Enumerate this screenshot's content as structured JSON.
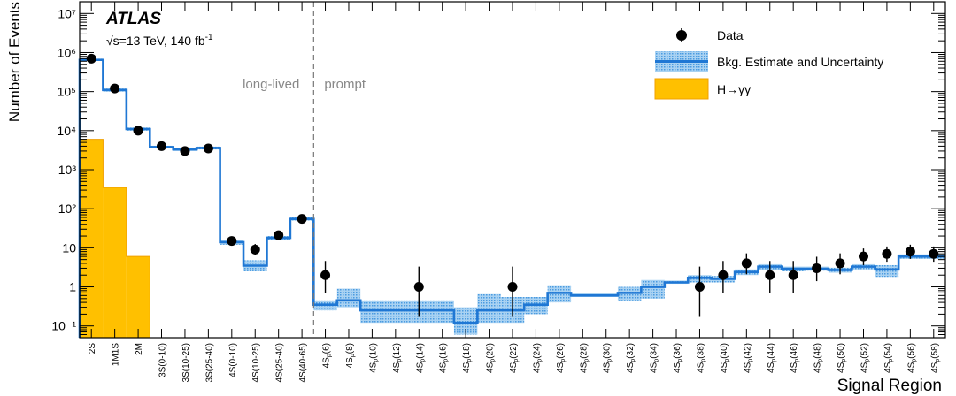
{
  "chart_data": {
    "type": "bar",
    "title": "",
    "experiment_label": "ATLAS",
    "energy_label": "√s=13 TeV, 140 fb",
    "energy_superscript": "-1",
    "xlabel": "Signal Region",
    "ylabel": "Number of Events",
    "yscale": "log",
    "ylim": [
      0.05,
      20000000
    ],
    "y_tick_labels": [
      "10⁻¹",
      "1",
      "10",
      "10²",
      "10³",
      "10⁴",
      "10⁵",
      "10⁶",
      "10⁷"
    ],
    "y_tick_values": [
      0.1,
      1,
      10,
      100,
      1000,
      10000,
      100000,
      1000000,
      10000000
    ],
    "region_divider": {
      "after_category": "4S(40-65)",
      "left_label": "long-lived",
      "right_label": "prompt"
    },
    "legend": {
      "placement": "top-right",
      "entries": [
        "Data",
        "Bkg. Estimate and Uncertainty",
        "H→γγ"
      ]
    },
    "colors": {
      "data": "#000000",
      "background": "#1f77d4",
      "background_band": "#7fb8e6",
      "signal": "#ffc000",
      "signal_edge": "#f0a000"
    },
    "categories": [
      "2S",
      "1M1S",
      "2M",
      "3S(0-10)",
      "3S(10-25)",
      "3S(25-40)",
      "4S(0-10)",
      "4S(10-25)",
      "4S(25-40)",
      "4S(40-65)",
      "4S_p(6)",
      "4S_p(8)",
      "4S_p(10)",
      "4S_p(12)",
      "4S_p(14)",
      "4S_p(16)",
      "4S_p(18)",
      "4S_p(20)",
      "4S_p(22)",
      "4S_p(24)",
      "4S_p(26)",
      "4S_p(28)",
      "4S_p(30)",
      "4S_p(32)",
      "4S_p(34)",
      "4S_p(36)",
      "4S_p(38)",
      "4S_p(40)",
      "4S_p(42)",
      "4S_p(44)",
      "4S_p(46)",
      "4S_p(48)",
      "4S_p(50)",
      "4S_p(52)",
      "4S_p(54)",
      "4S_p(56)",
      "4S_p(58)"
    ],
    "series": [
      {
        "name": "Data",
        "values": [
          700000,
          120000,
          10000,
          4000,
          3000,
          3500,
          15,
          9,
          21,
          55,
          2,
          0,
          0,
          0,
          1,
          0,
          0,
          0,
          1,
          0,
          0,
          0,
          0,
          0,
          0,
          0,
          1,
          2,
          4,
          2,
          2,
          3,
          4,
          6,
          7,
          8,
          7
        ]
      },
      {
        "name": "Bkg. Estimate and Uncertainty",
        "values": [
          650000,
          110000,
          11000,
          3800,
          3300,
          3600,
          14,
          3.5,
          18,
          55,
          0.35,
          0.45,
          0.25,
          0.25,
          0.25,
          0.25,
          0.12,
          0.25,
          0.25,
          0.35,
          0.7,
          0.6,
          0.6,
          0.7,
          1.0,
          1.3,
          1.7,
          1.6,
          2.4,
          3.3,
          2.9,
          2.9,
          2.7,
          3.3,
          2.8,
          6.0,
          6.0
        ],
        "unc_low": [
          620000,
          100000,
          10000,
          3500,
          3000,
          3300,
          12,
          2.5,
          16,
          50,
          0.25,
          0.3,
          0.12,
          0.12,
          0.12,
          0.12,
          0.06,
          0.12,
          0.12,
          0.2,
          0.4,
          0.55,
          0.55,
          0.45,
          0.5,
          1.2,
          1.3,
          1.3,
          2.0,
          2.7,
          2.5,
          2.6,
          2.3,
          2.8,
          1.8,
          5.2,
          5.2
        ],
        "unc_high": [
          700000,
          120000,
          12000,
          4100,
          3600,
          3900,
          16,
          4.8,
          20,
          60,
          0.45,
          0.9,
          0.45,
          0.45,
          0.45,
          0.45,
          0.3,
          0.65,
          0.55,
          0.55,
          1.1,
          0.7,
          0.7,
          1.0,
          1.5,
          1.45,
          2.0,
          1.9,
          2.8,
          3.8,
          3.3,
          3.3,
          3.1,
          3.8,
          3.6,
          6.8,
          6.8
        ]
      },
      {
        "name": "H→γγ",
        "values": [
          6000,
          350,
          6,
          0,
          0,
          0,
          0,
          0,
          0,
          0,
          0,
          0,
          0,
          0,
          0,
          0,
          0,
          0,
          0,
          0,
          0,
          0,
          0,
          0,
          0,
          0,
          0,
          0,
          0,
          0,
          0,
          0,
          0,
          0,
          0,
          0,
          0
        ]
      }
    ],
    "data_errors": [
      [
        0,
        0
      ],
      [
        0,
        0
      ],
      [
        0,
        0
      ],
      [
        0,
        0
      ],
      [
        0,
        0
      ],
      [
        0,
        0
      ],
      [
        0,
        0
      ],
      [
        2.5,
        3.5
      ],
      [
        0,
        0
      ],
      [
        0,
        0
      ],
      [
        1.3,
        2.6
      ],
      [
        0,
        0
      ],
      [
        0,
        0
      ],
      [
        0,
        0
      ],
      [
        0.83,
        2.3
      ],
      [
        0,
        0
      ],
      [
        0,
        0
      ],
      [
        0,
        0
      ],
      [
        0.83,
        2.3
      ],
      [
        0,
        0
      ],
      [
        0,
        0
      ],
      [
        0,
        0
      ],
      [
        0,
        0
      ],
      [
        0,
        0
      ],
      [
        0,
        0
      ],
      [
        0,
        0
      ],
      [
        0.83,
        2.3
      ],
      [
        1.3,
        2.6
      ],
      [
        1.9,
        3.2
      ],
      [
        1.3,
        2.6
      ],
      [
        1.3,
        2.6
      ],
      [
        1.6,
        2.9
      ],
      [
        1.9,
        3.2
      ],
      [
        2.4,
        3.6
      ],
      [
        2.6,
        3.8
      ],
      [
        2.8,
        4.0
      ],
      [
        2.6,
        3.8
      ]
    ]
  }
}
